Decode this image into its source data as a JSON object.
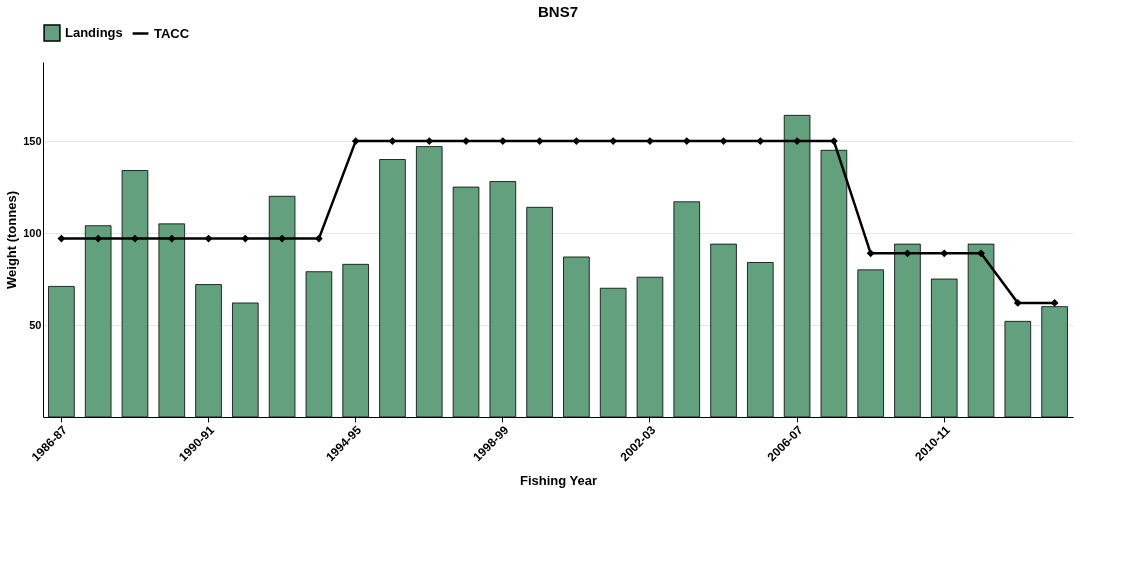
{
  "chart_data": {
    "type": "bar",
    "title": "BNS7",
    "xlabel": "Fishing Year",
    "ylabel": "Weight (tonnes)",
    "categories": [
      "1986-87",
      null,
      null,
      null,
      "1990-91",
      null,
      null,
      null,
      "1994-95",
      null,
      null,
      null,
      "1998-99",
      null,
      null,
      null,
      "2002-03",
      null,
      null,
      null,
      "2006-07",
      null,
      null,
      null,
      "2010-11",
      null,
      null,
      null
    ],
    "series": [
      {
        "name": "Landings",
        "color": "#63a07e",
        "values": [
          71,
          104,
          134,
          105,
          72,
          62,
          120,
          79,
          83,
          140,
          147,
          125,
          128,
          114,
          87,
          70,
          76,
          117,
          94,
          84,
          164,
          145,
          80,
          94,
          75,
          94,
          52,
          60
        ]
      },
      {
        "name": "TACC",
        "type": "line",
        "color": "#000000",
        "values": [
          97,
          97,
          97,
          97,
          97,
          97,
          97,
          97,
          150,
          150,
          150,
          150,
          150,
          150,
          150,
          150,
          150,
          150,
          150,
          150,
          150,
          150,
          89,
          89,
          89,
          89,
          62,
          62
        ]
      }
    ],
    "ylim": [
      0,
      193
    ],
    "yticks": [
      50,
      100,
      150
    ],
    "grid": "y",
    "legend": "top",
    "marker": "diamond",
    "line_style": "solid"
  }
}
